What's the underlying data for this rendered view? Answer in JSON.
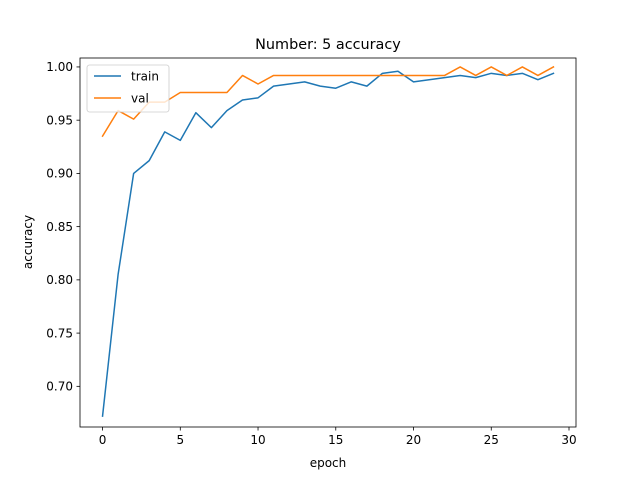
{
  "chart_data": {
    "type": "line",
    "title": "Number: 5 accuracy",
    "xlabel": "epoch",
    "ylabel": "accuracy",
    "xlim": [
      -1.45,
      30.45
    ],
    "ylim": [
      0.6618,
      1.0084
    ],
    "x_ticks": [
      0,
      5,
      10,
      15,
      20,
      25,
      30
    ],
    "y_ticks": [
      0.7,
      0.75,
      0.8,
      0.85,
      0.9,
      0.95,
      1.0
    ],
    "grid": false,
    "legend_position": "top-left",
    "x": [
      0,
      1,
      2,
      3,
      4,
      5,
      6,
      7,
      8,
      9,
      10,
      11,
      12,
      13,
      14,
      15,
      16,
      17,
      18,
      19,
      20,
      21,
      22,
      23,
      24,
      25,
      26,
      27,
      28,
      29
    ],
    "series": [
      {
        "name": "train",
        "color": "#1f77b4",
        "values": [
          0.672,
          0.805,
          0.9,
          0.912,
          0.939,
          0.931,
          0.957,
          0.943,
          0.959,
          0.969,
          0.971,
          0.982,
          0.984,
          0.986,
          0.982,
          0.98,
          0.986,
          0.982,
          0.994,
          0.996,
          0.986,
          0.988,
          0.99,
          0.992,
          0.99,
          0.994,
          0.992,
          0.994,
          0.988,
          0.994
        ]
      },
      {
        "name": "val",
        "color": "#ff7f0e",
        "values": [
          0.935,
          0.959,
          0.951,
          0.967,
          0.967,
          0.976,
          0.976,
          0.976,
          0.976,
          0.992,
          0.984,
          0.992,
          0.992,
          0.992,
          0.992,
          0.992,
          0.992,
          0.992,
          0.992,
          0.992,
          0.992,
          0.992,
          0.992,
          1.0,
          0.992,
          1.0,
          0.992,
          1.0,
          0.992,
          1.0
        ]
      }
    ]
  }
}
